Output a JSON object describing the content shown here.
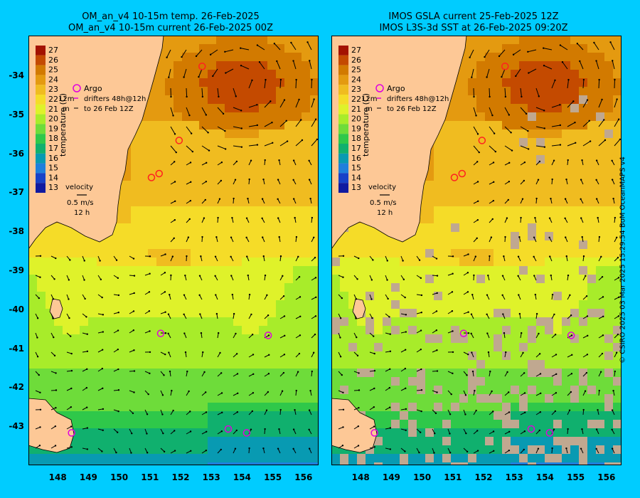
{
  "panels": [
    {
      "title_line1": "OM_an_v4  10-15m temp. 26-Feb-2025",
      "title_line2": "OM_an_v4  10-15m current 26-Feb-2025 00Z",
      "masking": false
    },
    {
      "title_line1": "IMOS GSLA current 25-Feb-2025 12Z",
      "title_line2": "IMOS L3S-3d SST at 26-Feb-2025 09:20Z",
      "masking": true
    }
  ],
  "lat_ticks": [
    "-34",
    "-35",
    "-36",
    "-37",
    "-38",
    "-39",
    "-40",
    "-41",
    "-42",
    "-43"
  ],
  "lat_values": [
    -34,
    -35,
    -36,
    -37,
    -38,
    -39,
    -40,
    -41,
    -42,
    -43
  ],
  "lon_ticks": [
    "148",
    "149",
    "150",
    "151",
    "152",
    "153",
    "154",
    "155",
    "156"
  ],
  "lon_values": [
    148,
    149,
    150,
    151,
    152,
    153,
    154,
    155,
    156
  ],
  "colorbar": {
    "labels": [
      "27",
      "26",
      "25",
      "24",
      "23",
      "22",
      "21",
      "20",
      "19",
      "18",
      "17",
      "16",
      "15",
      "14",
      "13"
    ],
    "title": "temperature (C)",
    "colors": [
      "#a31200",
      "#c44a00",
      "#d27a00",
      "#e49a10",
      "#f0bc20",
      "#f5dc28",
      "#dff22a",
      "#a8ec2a",
      "#6edc3a",
      "#2fc84a",
      "#10b06e",
      "#089ab2",
      "#1f7fdc",
      "#1842c8",
      "#101aa0"
    ]
  },
  "legend": {
    "argo": "Argo",
    "drifters_1": "drifters 48h@12h",
    "drifters_2": "to 26 Feb 12Z",
    "depth_label_1": "12m",
    "depth_label_2": "m",
    "velocity_label": "velocity",
    "velocity_value": "0.5 m/s",
    "velocity_time": "12 h"
  },
  "argo_floats": [
    {
      "lon": 152.7,
      "lat": -33.75
    },
    {
      "lon": 151.95,
      "lat": -35.65
    },
    {
      "lon": 151.05,
      "lat": -36.6
    },
    {
      "lon": 151.3,
      "lat": -36.5
    },
    {
      "lon": 151.35,
      "lat": -40.6
    },
    {
      "lon": 154.85,
      "lat": -40.65
    },
    {
      "lon": 148.45,
      "lat": -43.15
    },
    {
      "lon": 153.55,
      "lat": -43.05
    },
    {
      "lon": 154.15,
      "lat": -43.15
    }
  ],
  "credit": "© CSIRO 2025   03 Mar 2025 15:29:54 BoM OceanMAPS v4",
  "colors": {
    "background": "#00ccff",
    "land": "#fdc896",
    "argo": "#e000e0",
    "argo_red": "#ff2020",
    "arrows": "#000000",
    "masked": "#c0a890"
  }
}
